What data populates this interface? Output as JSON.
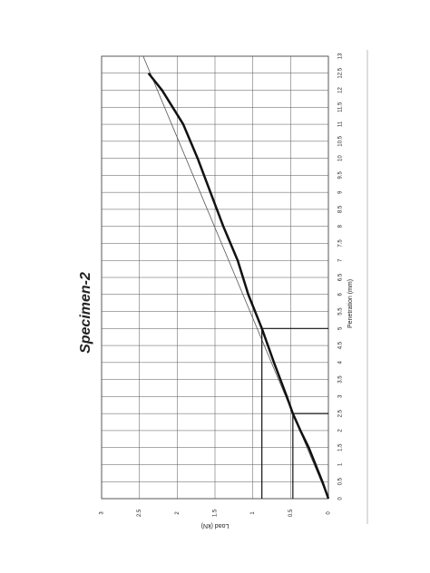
{
  "chart_data": {
    "type": "line",
    "title": "Specimen-2",
    "x_label": "Penetration (mm)",
    "y_label": "Load (kN)",
    "x": [
      0,
      0.5,
      1,
      1.5,
      2,
      2.5,
      3,
      4,
      5,
      6,
      7,
      8,
      9,
      10,
      11,
      12,
      12.5
    ],
    "series": [
      {
        "color": "#111111",
        "values": [
          0,
          0.08,
          0.17,
          0.26,
          0.37,
          0.47,
          0.55,
          0.72,
          0.88,
          1.06,
          1.2,
          1.39,
          1.56,
          1.73,
          1.92,
          2.2,
          2.38
        ]
      }
    ],
    "fit_line": {
      "x": [
        0,
        13
      ],
      "values": [
        0,
        2.45
      ],
      "color": "#555555"
    },
    "markers": [
      {
        "x": 2.5,
        "load": 0.47
      },
      {
        "x": 5,
        "load": 0.88
      }
    ],
    "xlim": [
      0,
      13
    ],
    "ylim": [
      0,
      3
    ],
    "xticks": [
      0,
      0.5,
      1,
      1.5,
      2,
      2.5,
      3,
      3.5,
      4,
      4.5,
      5,
      5.5,
      6,
      6.5,
      7,
      7.5,
      8,
      8.5,
      9,
      9.5,
      10,
      10.5,
      11,
      11.5,
      12,
      12.5,
      13
    ],
    "yticks": [
      0,
      0.5,
      1,
      1.5,
      2,
      2.5,
      3
    ],
    "grid": true,
    "rotated": true
  }
}
